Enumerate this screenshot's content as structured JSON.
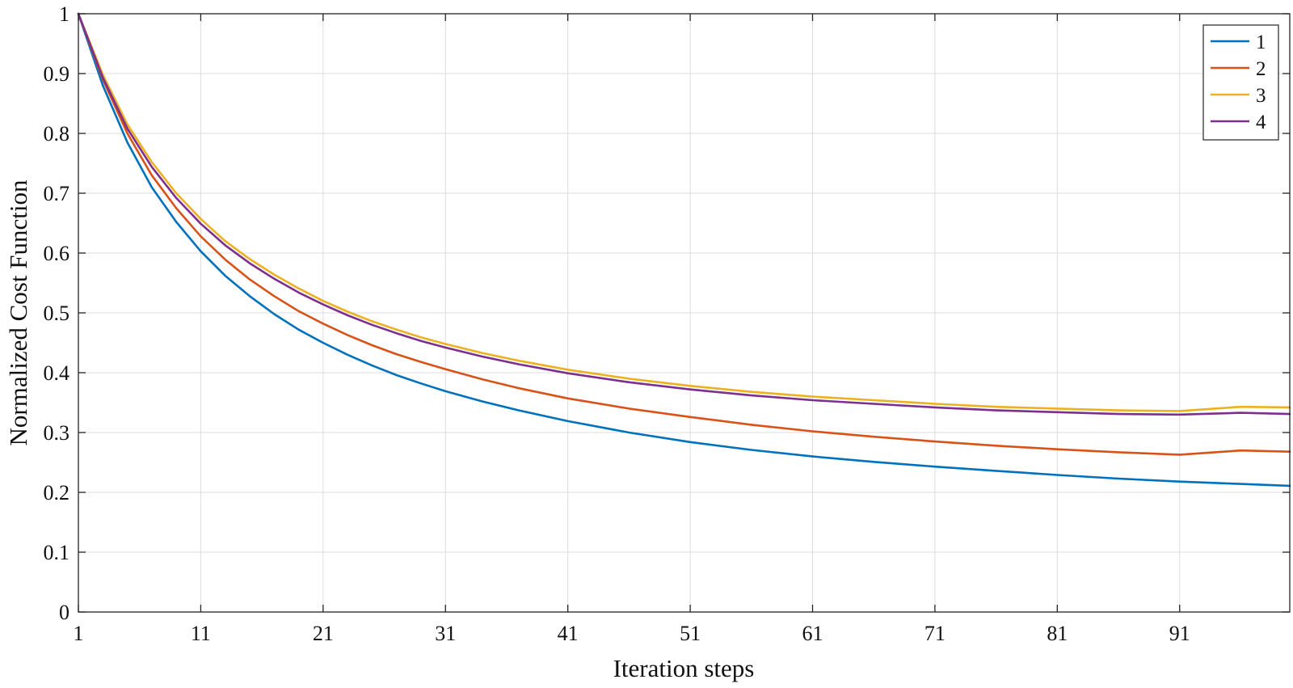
{
  "chart_data": {
    "type": "line",
    "title": "",
    "xlabel": "Iteration steps",
    "ylabel": "Normalized Cost Function",
    "xlim": [
      1,
      100
    ],
    "ylim": [
      0,
      1
    ],
    "xticks": [
      1,
      11,
      21,
      31,
      41,
      51,
      61,
      71,
      81,
      91
    ],
    "yticks": [
      0,
      0.1,
      0.2,
      0.3,
      0.4,
      0.5,
      0.6,
      0.7,
      0.8,
      0.9,
      1
    ],
    "ytick_labels": [
      "0",
      "0.1",
      "0.2",
      "0.3",
      "0.4",
      "0.5",
      "0.6",
      "0.7",
      "0.8",
      "0.9",
      "1"
    ],
    "grid": true,
    "legend_position": "top-right",
    "x": [
      1,
      3,
      5,
      7,
      9,
      11,
      13,
      15,
      17,
      19,
      21,
      23,
      25,
      27,
      29,
      31,
      34,
      37,
      41,
      46,
      51,
      56,
      61,
      66,
      71,
      76,
      81,
      86,
      91,
      96,
      100
    ],
    "series": [
      {
        "name": "1",
        "color": "#0072BD",
        "values": [
          1.0,
          0.88,
          0.785,
          0.71,
          0.652,
          0.603,
          0.562,
          0.528,
          0.498,
          0.472,
          0.45,
          0.43,
          0.412,
          0.396,
          0.382,
          0.369,
          0.352,
          0.337,
          0.319,
          0.3,
          0.284,
          0.271,
          0.26,
          0.251,
          0.243,
          0.236,
          0.229,
          0.223,
          0.218,
          0.214,
          0.211
        ]
      },
      {
        "name": "2",
        "color": "#D95319",
        "values": [
          1.0,
          0.89,
          0.8,
          0.73,
          0.675,
          0.628,
          0.589,
          0.556,
          0.528,
          0.503,
          0.482,
          0.463,
          0.446,
          0.431,
          0.418,
          0.406,
          0.389,
          0.374,
          0.357,
          0.34,
          0.326,
          0.313,
          0.302,
          0.293,
          0.285,
          0.278,
          0.272,
          0.267,
          0.263,
          0.27,
          0.268
        ]
      },
      {
        "name": "3",
        "color": "#EDB120",
        "values": [
          1.0,
          0.898,
          0.815,
          0.752,
          0.7,
          0.657,
          0.62,
          0.59,
          0.564,
          0.541,
          0.52,
          0.502,
          0.486,
          0.472,
          0.459,
          0.448,
          0.433,
          0.42,
          0.405,
          0.39,
          0.378,
          0.368,
          0.36,
          0.354,
          0.348,
          0.343,
          0.34,
          0.337,
          0.336,
          0.343,
          0.342
        ]
      },
      {
        "name": "4",
        "color": "#7E2F8E",
        "values": [
          1.0,
          0.893,
          0.808,
          0.744,
          0.692,
          0.649,
          0.613,
          0.583,
          0.557,
          0.534,
          0.514,
          0.496,
          0.48,
          0.466,
          0.453,
          0.442,
          0.427,
          0.414,
          0.399,
          0.384,
          0.372,
          0.362,
          0.354,
          0.348,
          0.342,
          0.337,
          0.334,
          0.331,
          0.33,
          0.333,
          0.331
        ]
      }
    ]
  }
}
